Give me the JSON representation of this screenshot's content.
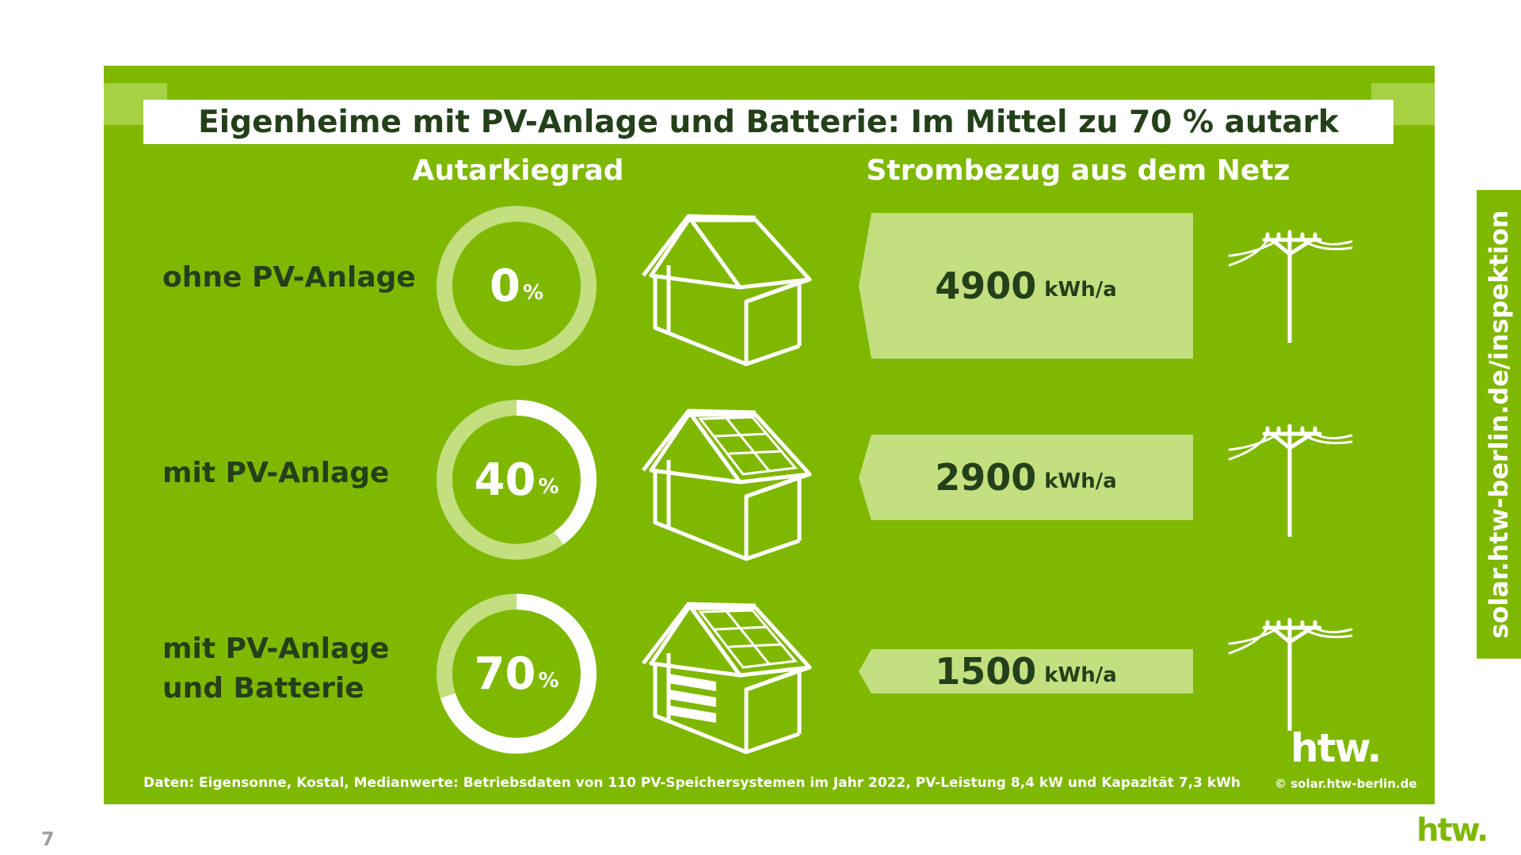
{
  "title": "Eigenheime mit PV-Anlage und Batterie: Im Mittel zu 70 % autark",
  "col_headers": {
    "autarky": "Autarkiegrad",
    "grid": "Strombezug aus dem Netz"
  },
  "rows": [
    {
      "label": "ohne PV-Anlage",
      "autarky_value": "0",
      "autarky_unit": "%",
      "grid_value": "4900",
      "grid_unit": "kWh/a"
    },
    {
      "label": "mit PV-Anlage",
      "autarky_value": "40",
      "autarky_unit": "%",
      "grid_value": "2900",
      "grid_unit": "kWh/a"
    },
    {
      "label": "mit PV-Anlage\nund Batterie",
      "autarky_value": "70",
      "autarky_unit": "%",
      "grid_value": "1500",
      "grid_unit": "kWh/a"
    }
  ],
  "footnote": "Daten: Eigensonne, Kostal, Medianwerte: Betriebsdaten von 110 PV-Speichersystemen im Jahr 2022, PV-Leistung 8,4 kW und Kapazität 7,3 kWh",
  "logo_text": "htw.",
  "copyright": "© solar.htw-berlin.de",
  "side_url": "solar.htw-berlin.de/inspektion",
  "page_number": "7",
  "colors": {
    "panel": "#7fb800",
    "ring_track": "#c3df7f",
    "ring_fill": "#ffffff",
    "arrow": "#c3df7f",
    "dark_text": "#24401a"
  },
  "icons": [
    "house-icon",
    "house-solar-icon",
    "house-solar-battery-icon",
    "power-pole-icon"
  ],
  "chart_data": [
    {
      "type": "pie",
      "title": "Autarkiegrad",
      "categories": [
        "ohne PV-Anlage",
        "mit PV-Anlage",
        "mit PV-Anlage und Batterie"
      ],
      "values": [
        0,
        40,
        70
      ],
      "unit": "%"
    },
    {
      "type": "bar",
      "title": "Strombezug aus dem Netz",
      "categories": [
        "ohne PV-Anlage",
        "mit PV-Anlage",
        "mit PV-Anlage und Batterie"
      ],
      "values": [
        4900,
        2900,
        1500
      ],
      "unit": "kWh/a"
    }
  ]
}
